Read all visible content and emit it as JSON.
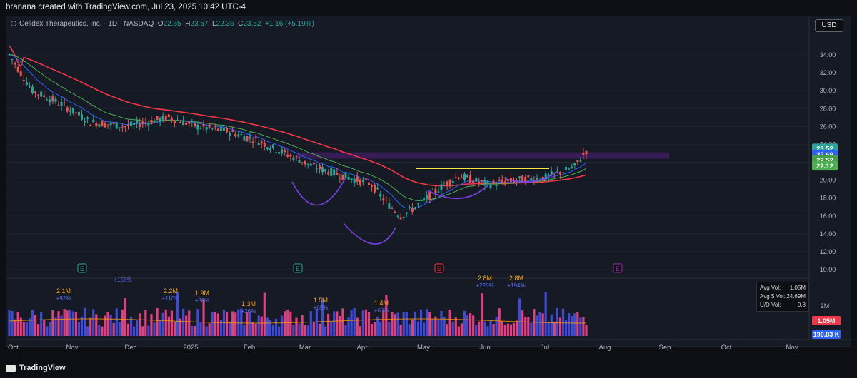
{
  "caption": "branana created with TradingView.com, Jul 23, 2025 10:42 UTC-4",
  "header": {
    "symbol": "Celldex Therapeutics, Inc. · 1D · NASDAQ",
    "o_label": "O",
    "o": "22.65",
    "h_label": "H",
    "h": "23.57",
    "l_label": "L",
    "l": "22.36",
    "c_label": "C",
    "c": "23.52",
    "change": "+1.16 (+5.19%)"
  },
  "currency_button": "USD",
  "price_axis": {
    "ticks": [
      "34.00",
      "32.00",
      "30.00",
      "28.00",
      "26.00",
      "24.00",
      "22.00",
      "20.00",
      "18.00",
      "16.00",
      "14.00",
      "12.00",
      "10.00"
    ],
    "markers": [
      {
        "value": "23.52",
        "color": "#26a69a"
      },
      {
        "value": "22.69",
        "color": "#2962ff"
      },
      {
        "value": "22.52",
        "color": "#43a047"
      },
      {
        "value": "22.12",
        "color": "#4caf50"
      }
    ]
  },
  "volume_axis": {
    "tick": "2M",
    "markers": [
      {
        "value": "1.05M",
        "color": "#f23645"
      },
      {
        "value": "190.83 K",
        "color": "#2962ff"
      }
    ]
  },
  "time_axis": [
    "Oct",
    "Nov",
    "Dec",
    "2025",
    "Feb",
    "Mar",
    "Apr",
    "May",
    "Jun",
    "Jul",
    "Aug",
    "Sep",
    "Oct",
    "Nov"
  ],
  "earnings_markers": [
    {
      "label": "E",
      "color": "#26a69a"
    },
    {
      "label": "E",
      "color": "#26a69a"
    },
    {
      "label": "E",
      "color": "#f23645"
    },
    {
      "label": "E",
      "color": "#9c27b0"
    }
  ],
  "volume_annotations": [
    {
      "vol": "",
      "pct": "+155%",
      "vol_color": "#f7a600",
      "pct_color": "#5b6cf2"
    },
    {
      "vol": "2.1M",
      "pct": "+92%",
      "vol_color": "#f7a600",
      "pct_color": "#5b6cf2"
    },
    {
      "vol": "2.2M",
      "pct": "+110%",
      "vol_color": "#f7a600",
      "pct_color": "#5b6cf2"
    },
    {
      "vol": "1.9M",
      "pct": "+80%",
      "vol_color": "#f7a600",
      "pct_color": "#5b6cf2"
    },
    {
      "vol": "1.3M",
      "pct": "+26%",
      "vol_color": "#f7a600",
      "pct_color": "#5b6cf2"
    },
    {
      "vol": "1.5M",
      "pct": "+69%",
      "vol_color": "#f7a600",
      "pct_color": "#5b6cf2"
    },
    {
      "vol": "1.4M",
      "pct": "+63%",
      "vol_color": "#f7a600",
      "pct_color": "#5b6cf2"
    },
    {
      "vol": "2.8M",
      "pct": "+228%",
      "vol_color": "#f7a600",
      "pct_color": "#5b6cf2"
    },
    {
      "vol": "2.8M",
      "pct": "+194%",
      "vol_color": "#f7a600",
      "pct_color": "#5b6cf2"
    }
  ],
  "stats": {
    "avg_vol_label": "Avg Vol:",
    "avg_vol": "1.05M",
    "avg_dollar_label": "Avg $ Vol:",
    "avg_dollar": "24.69M",
    "ud_label": "U/D Vol:",
    "ud": "0.8"
  },
  "colors": {
    "up": "#26a69a",
    "down": "#ef5350",
    "ema_fast": "#2962ff",
    "ema_red": "#f23645",
    "sma_green": "#4caf50",
    "resistance": "#ffeb3b",
    "zone": "#3c1f5c",
    "pattern": "#7b3fe4",
    "vol_up": "#3f4bd6",
    "vol_down": "#e0407f"
  },
  "branding": "TradingView"
}
